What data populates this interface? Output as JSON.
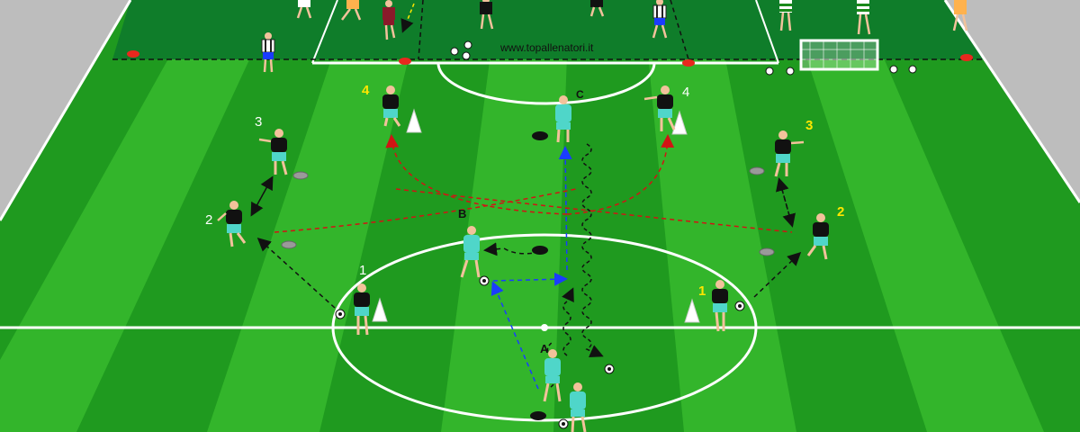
{
  "diagram": {
    "watermark": "www.topallenatori.it",
    "player_labels": {
      "A": "A",
      "B": "B",
      "C": "C",
      "left_1": "1",
      "left_2": "2",
      "left_3": "3",
      "left_4": "4",
      "right_1": "1",
      "right_2": "2",
      "right_3": "3",
      "right_4": "4"
    },
    "colors": {
      "grass_dark": "#1f9a1f",
      "grass_light": "#33b52b",
      "side_gray": "#bdbdbd",
      "label_yellow": "#ffe600",
      "label_white": "#ffffff",
      "label_black": "#111111",
      "pass_arrow": "#111111",
      "run_arrow_blue": "#1a3cff",
      "curve_arrow_red": "#d11414",
      "team_cyan": "#4fd6c9",
      "team_black": "#111111"
    }
  }
}
